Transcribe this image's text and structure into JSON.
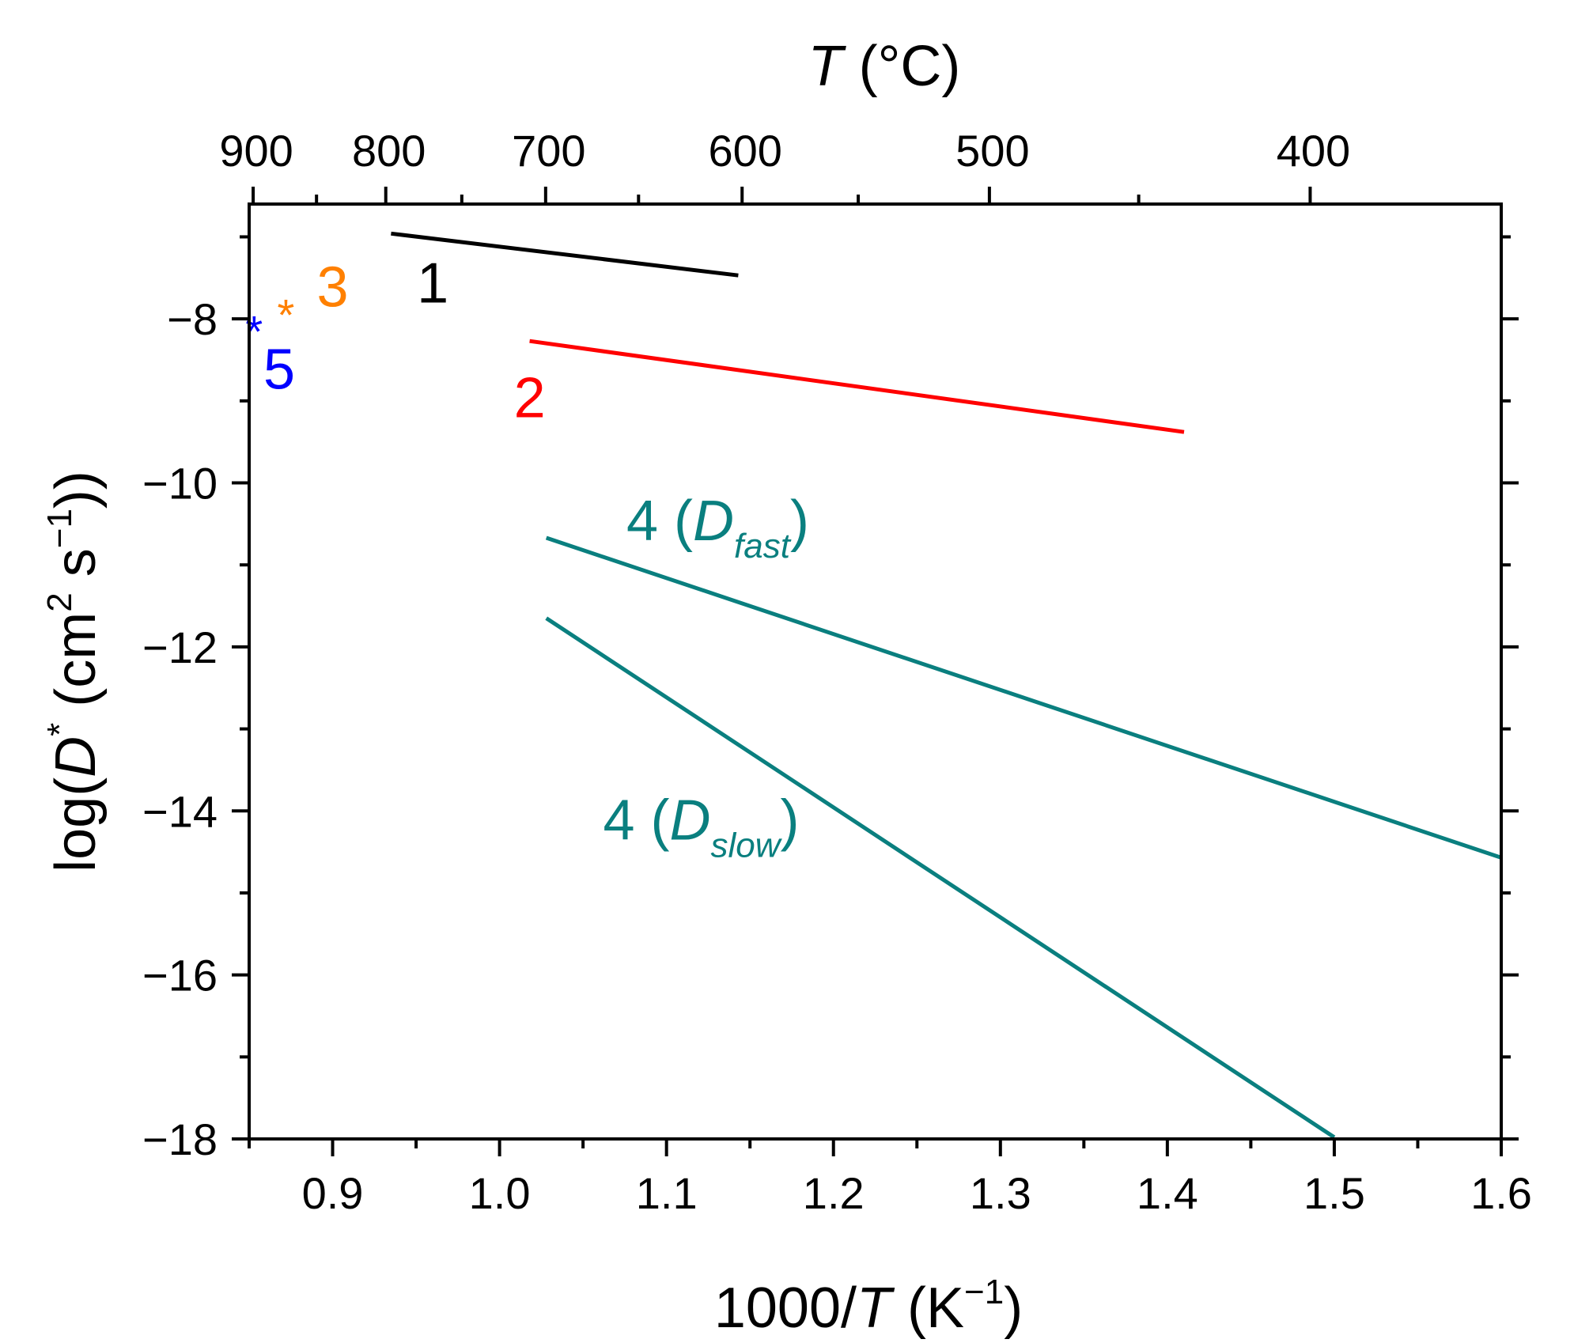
{
  "chart_data": {
    "type": "line",
    "xlabel": {
      "prefix": "1000/",
      "italic": "T",
      "unit_open": " (K",
      "unit_sup": "−1",
      "unit_close": ")"
    },
    "ylabel": {
      "prefix": "log(",
      "italic": "D",
      "sup": "*",
      "unit_open": " (cm",
      "unit_sup": "2",
      "mid": " s",
      "unit_sup2": "−1",
      "unit_close": "))"
    },
    "top_axis_label": {
      "italic": "T",
      "rest": " (°C)"
    },
    "xlim": [
      0.85,
      1.6
    ],
    "ylim": [
      -18,
      -6.6
    ],
    "x_ticks": [
      {
        "value": 0.9,
        "label": "0.9"
      },
      {
        "value": 1.0,
        "label": "1.0"
      },
      {
        "value": 1.1,
        "label": "1.1"
      },
      {
        "value": 1.2,
        "label": "1.2"
      },
      {
        "value": 1.3,
        "label": "1.3"
      },
      {
        "value": 1.4,
        "label": "1.4"
      },
      {
        "value": 1.5,
        "label": "1.5"
      },
      {
        "value": 1.6,
        "label": "1.6"
      }
    ],
    "x_minor_ticks": [
      0.85,
      0.95,
      1.05,
      1.15,
      1.25,
      1.35,
      1.45,
      1.55
    ],
    "y_ticks": [
      {
        "value": -8,
        "label": "−8"
      },
      {
        "value": -10,
        "label": "−10"
      },
      {
        "value": -12,
        "label": "−12"
      },
      {
        "value": -14,
        "label": "−14"
      },
      {
        "value": -16,
        "label": "−16"
      },
      {
        "value": -18,
        "label": "−18"
      }
    ],
    "y_minor_ticks": [
      -7,
      -9,
      -11,
      -13,
      -15,
      -17
    ],
    "top_ticks_celsius": [
      {
        "value": 900,
        "label": "900"
      },
      {
        "value": 800,
        "label": "800"
      },
      {
        "value": 700,
        "label": "700"
      },
      {
        "value": 600,
        "label": "600"
      },
      {
        "value": 500,
        "label": "500"
      },
      {
        "value": 400,
        "label": "400"
      }
    ],
    "top_minor_ticks_celsius": [
      850,
      750,
      650,
      550,
      450,
      350
    ],
    "series": [
      {
        "name": "1",
        "color": "#000000",
        "x": [
          0.935,
          1.143
        ],
        "y": [
          -6.96,
          -7.47
        ]
      },
      {
        "name": "2",
        "color": "#ff0000",
        "x": [
          1.018,
          1.41
        ],
        "y": [
          -8.27,
          -9.38
        ]
      },
      {
        "name": "4 (D_fast)",
        "color": "#0a7f7f",
        "x": [
          1.028,
          1.6
        ],
        "y": [
          -10.67,
          -14.57
        ]
      },
      {
        "name": "4 (D_slow)",
        "color": "#0a7f7f",
        "x": [
          1.028,
          1.5
        ],
        "y": [
          -11.65,
          -17.98
        ]
      }
    ],
    "points": [
      {
        "name": "3",
        "color": "#ff8000",
        "x": 0.872,
        "y": -7.85,
        "marker": "*"
      },
      {
        "name": "5",
        "color": "#0000ff",
        "x": 0.853,
        "y": -8.05,
        "marker": "*"
      }
    ],
    "annotations": [
      {
        "id": "1",
        "text": "1",
        "color": "#000000",
        "x": 0.96,
        "y": -7.8
      },
      {
        "id": "2",
        "text": "2",
        "color": "#ff0000",
        "x": 1.018,
        "y": -9.2
      },
      {
        "id": "3",
        "text": "3",
        "color": "#ff8000",
        "x": 0.9,
        "y": -7.85
      },
      {
        "id": "5",
        "text": "5",
        "color": "#0000ff",
        "x": 0.868,
        "y": -8.85
      },
      {
        "id": "4fast",
        "pre": "4 (",
        "italic": "D",
        "sub": "fast",
        "post": ")",
        "color": "#0a7f7f",
        "x": 1.076,
        "y": -10.7
      },
      {
        "id": "4slow",
        "pre": "4 (",
        "italic": "D",
        "sub": "slow",
        "post": ")",
        "color": "#0a7f7f",
        "x": 1.062,
        "y": -14.35
      }
    ]
  }
}
